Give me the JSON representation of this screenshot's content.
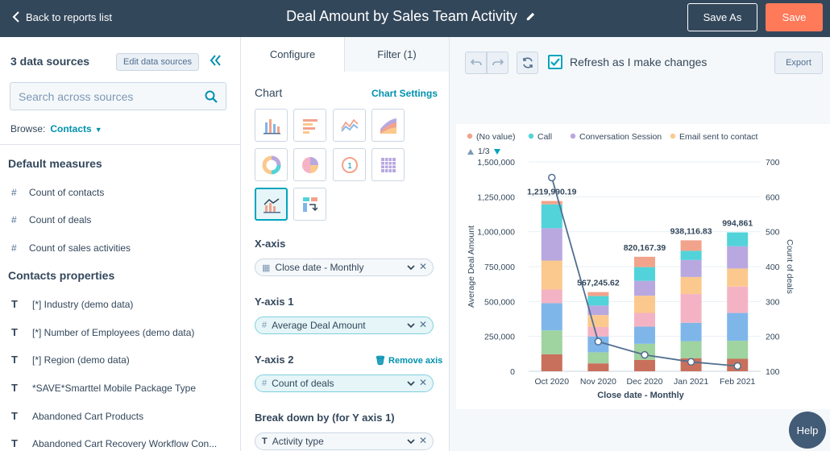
{
  "header": {
    "back_label": "Back to reports list",
    "title": "Deal Amount by Sales Team Activity",
    "save_as_label": "Save As",
    "save_label": "Save"
  },
  "sidebar": {
    "data_sources_title": "3 data sources",
    "edit_sources_label": "Edit data sources",
    "search_placeholder": "Search across sources",
    "browse_label": "Browse:",
    "browse_value": "Contacts",
    "default_measures_title": "Default measures",
    "measures": [
      {
        "glyph": "#",
        "label": "Count of contacts"
      },
      {
        "glyph": "#",
        "label": "Count of deals"
      },
      {
        "glyph": "#",
        "label": "Count of sales activities"
      }
    ],
    "contacts_properties_title": "Contacts properties",
    "properties": [
      {
        "glyph": "T",
        "label": "[*] Industry (demo data)"
      },
      {
        "glyph": "T",
        "label": "[*] Number of Employees (demo data)"
      },
      {
        "glyph": "T",
        "label": "[*] Region (demo data)"
      },
      {
        "glyph": "T",
        "label": "*SAVE*Smarttel Mobile Package Type"
      },
      {
        "glyph": "T",
        "label": "Abandoned Cart Products"
      },
      {
        "glyph": "T",
        "label": "Abandoned Cart Recovery Workflow Con..."
      }
    ]
  },
  "config": {
    "tab_configure": "Configure",
    "tab_filter": "Filter (1)",
    "chart_label": "Chart",
    "chart_settings_label": "Chart Settings",
    "chart_types": [
      "vertical-bar-chart-icon",
      "horizontal-bar-chart-icon",
      "line-chart-icon",
      "area-chart-icon",
      "donut-chart-icon",
      "pie-chart-icon",
      "single-value-icon",
      "table-icon",
      "combo-chart-icon",
      "pivot-table-icon"
    ],
    "xaxis_label": "X-axis",
    "xaxis_value": "Close date - Monthly",
    "yaxis1_label": "Y-axis 1",
    "yaxis1_value": "Average Deal Amount",
    "yaxis2_label": "Y-axis 2",
    "remove_axis_label": "Remove axis",
    "yaxis2_value": "Count of deals",
    "breakdown_label": "Break down by (for Y axis 1)",
    "breakdown_value": "Activity type"
  },
  "preview": {
    "refresh_label": "Refresh as I make changes",
    "refresh_checked": true,
    "export_label": "Export",
    "help_label": "Help"
  },
  "chart_data": {
    "type": "bar",
    "legend_page": "1/3",
    "legend": [
      {
        "name": "(No value)",
        "color": "#f2a38c"
      },
      {
        "name": "Call",
        "color": "#51d3d9"
      },
      {
        "name": "Conversation Session",
        "color": "#b9a8e0"
      },
      {
        "name": "Email sent to contact",
        "color": "#fbc98e"
      }
    ],
    "categories": [
      "Oct 2020",
      "Nov 2020",
      "Dec 2020",
      "Jan 2021",
      "Feb 2021"
    ],
    "totals": [
      1219990.19,
      567245.62,
      820167.39,
      938116.83,
      994861
    ],
    "total_labels": [
      "1,219,990.19",
      "567,245.62",
      "820,167.39",
      "938,116.83",
      "994,861"
    ],
    "stack_colors": [
      "#c9705c",
      "#9fd3a0",
      "#7fb6ea",
      "#f4b3c4",
      "#fbc98e",
      "#b9a8e0",
      "#51d3d9",
      "#f2a38c"
    ],
    "stack_fractions": [
      [
        0.1,
        0.14,
        0.16,
        0.08,
        0.17,
        0.19,
        0.14,
        0.02
      ],
      [
        0.1,
        0.14,
        0.2,
        0.12,
        0.15,
        0.12,
        0.12,
        0.05
      ],
      [
        0.1,
        0.14,
        0.15,
        0.12,
        0.15,
        0.13,
        0.12,
        0.09
      ],
      [
        0.1,
        0.13,
        0.14,
        0.22,
        0.13,
        0.13,
        0.07,
        0.08
      ],
      [
        0.09,
        0.13,
        0.2,
        0.19,
        0.13,
        0.16,
        0.1,
        0.0
      ]
    ],
    "line_name": "Count of deals",
    "line_values": [
      655,
      185,
      147,
      127,
      115
    ],
    "ylabel_left": "Average Deal Amount",
    "ylabel_right": "Count of deals",
    "xlabel": "Close date - Monthly",
    "ylim_left": [
      0,
      1500000
    ],
    "yticks_left": [
      "0",
      "250,000",
      "500,000",
      "750,000",
      "1,000,000",
      "1,250,000",
      "1,500,000"
    ],
    "ylim_right": [
      100,
      700
    ],
    "yticks_right": [
      "100",
      "200",
      "300",
      "400",
      "500",
      "600",
      "700"
    ]
  }
}
